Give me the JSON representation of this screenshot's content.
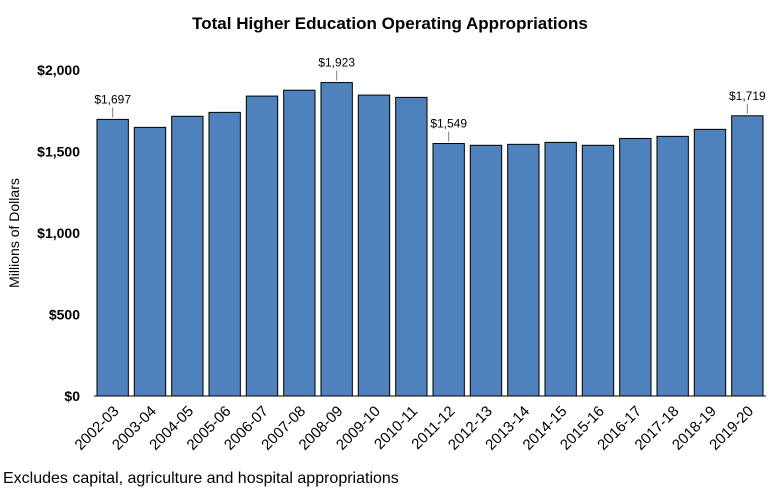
{
  "chart_data": {
    "type": "bar",
    "title": "Total Higher Education Operating Appropriations",
    "ylabel": "Millions of Dollars",
    "xlabel": "",
    "ylim": [
      0,
      2000
    ],
    "yticks": [
      0,
      500,
      1000,
      1500,
      2000
    ],
    "ytick_labels": [
      "$0",
      "$500",
      "$1,000",
      "$1,500",
      "$2,000"
    ],
    "categories": [
      "2002-03",
      "2003-04",
      "2004-05",
      "2005-06",
      "2006-07",
      "2007-08",
      "2008-09",
      "2009-10",
      "2010-11",
      "2011-12",
      "2012-13",
      "2013-14",
      "2014-15",
      "2015-16",
      "2016-17",
      "2017-18",
      "2018-19",
      "2019-20"
    ],
    "values": [
      1697,
      1648,
      1716,
      1740,
      1840,
      1876,
      1923,
      1846,
      1832,
      1549,
      1538,
      1544,
      1556,
      1538,
      1580,
      1593,
      1636,
      1719
    ],
    "data_labels": [
      {
        "category": "2002-03",
        "text": "$1,697"
      },
      {
        "category": "2008-09",
        "text": "$1,923"
      },
      {
        "category": "2011-12",
        "text": "$1,549"
      },
      {
        "category": "2019-20",
        "text": "$1,719"
      }
    ],
    "bar_color": "#4f81bd",
    "grid": false,
    "legend": "none"
  },
  "footnote": "Excludes capital, agriculture and hospital appropriations"
}
